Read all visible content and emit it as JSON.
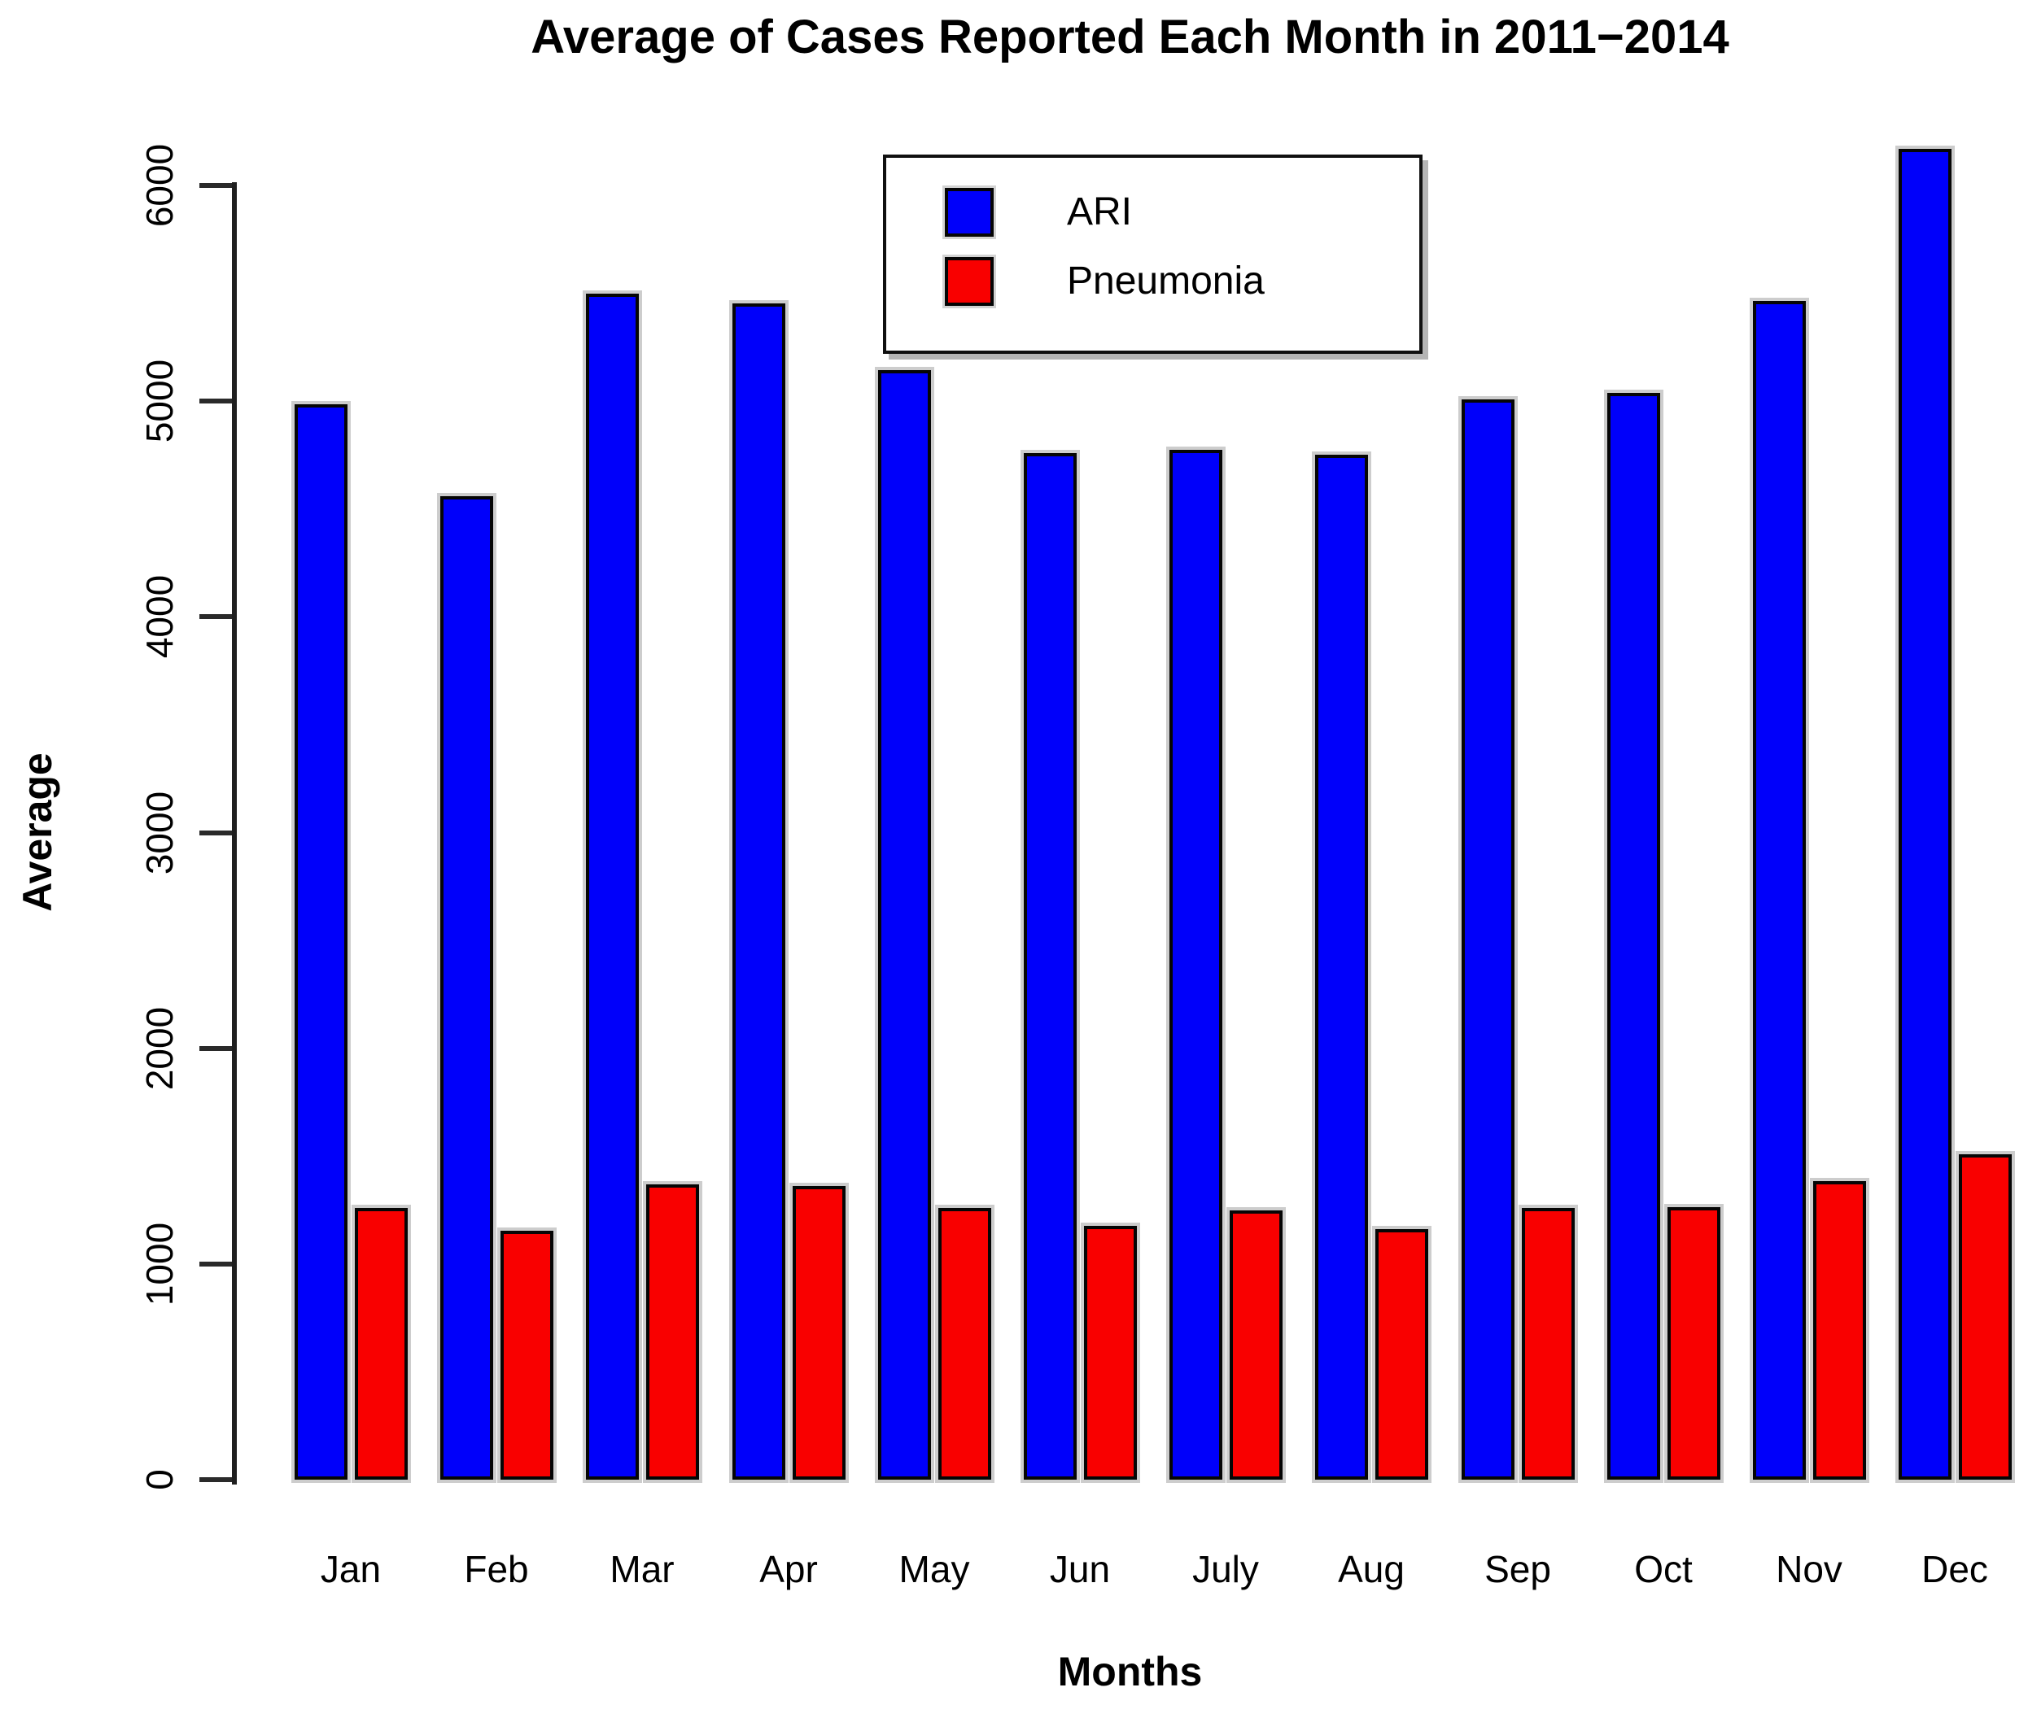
{
  "chart_data": {
    "type": "bar",
    "title": "Average of Cases Reported Each Month in 2011−2014",
    "xlabel": "Months",
    "ylabel": "Average",
    "categories": [
      "Jan",
      "Feb",
      "Mar",
      "Apr",
      "May",
      "Jun",
      "July",
      "Aug",
      "Sep",
      "Oct",
      "Nov",
      "Dec"
    ],
    "series": [
      {
        "name": "ARI",
        "color": "#0000FA",
        "values": [
          4985,
          4560,
          5500,
          5455,
          5145,
          4760,
          4775,
          4750,
          5010,
          5040,
          5465,
          6170
        ]
      },
      {
        "name": "Pneumonia",
        "color": "#F90000",
        "values": [
          1260,
          1155,
          1370,
          1360,
          1260,
          1175,
          1250,
          1160,
          1260,
          1265,
          1385,
          1510
        ]
      }
    ],
    "ylim": [
      0,
      6000
    ],
    "ytick_step": 1000,
    "ytick_labels": [
      "0",
      "1000",
      "2000",
      "3000",
      "4000",
      "5000",
      "6000"
    ],
    "grid": false,
    "legend_position": "top-center",
    "bar_border_color": "#000000",
    "background_color": "#FFFFFF"
  }
}
